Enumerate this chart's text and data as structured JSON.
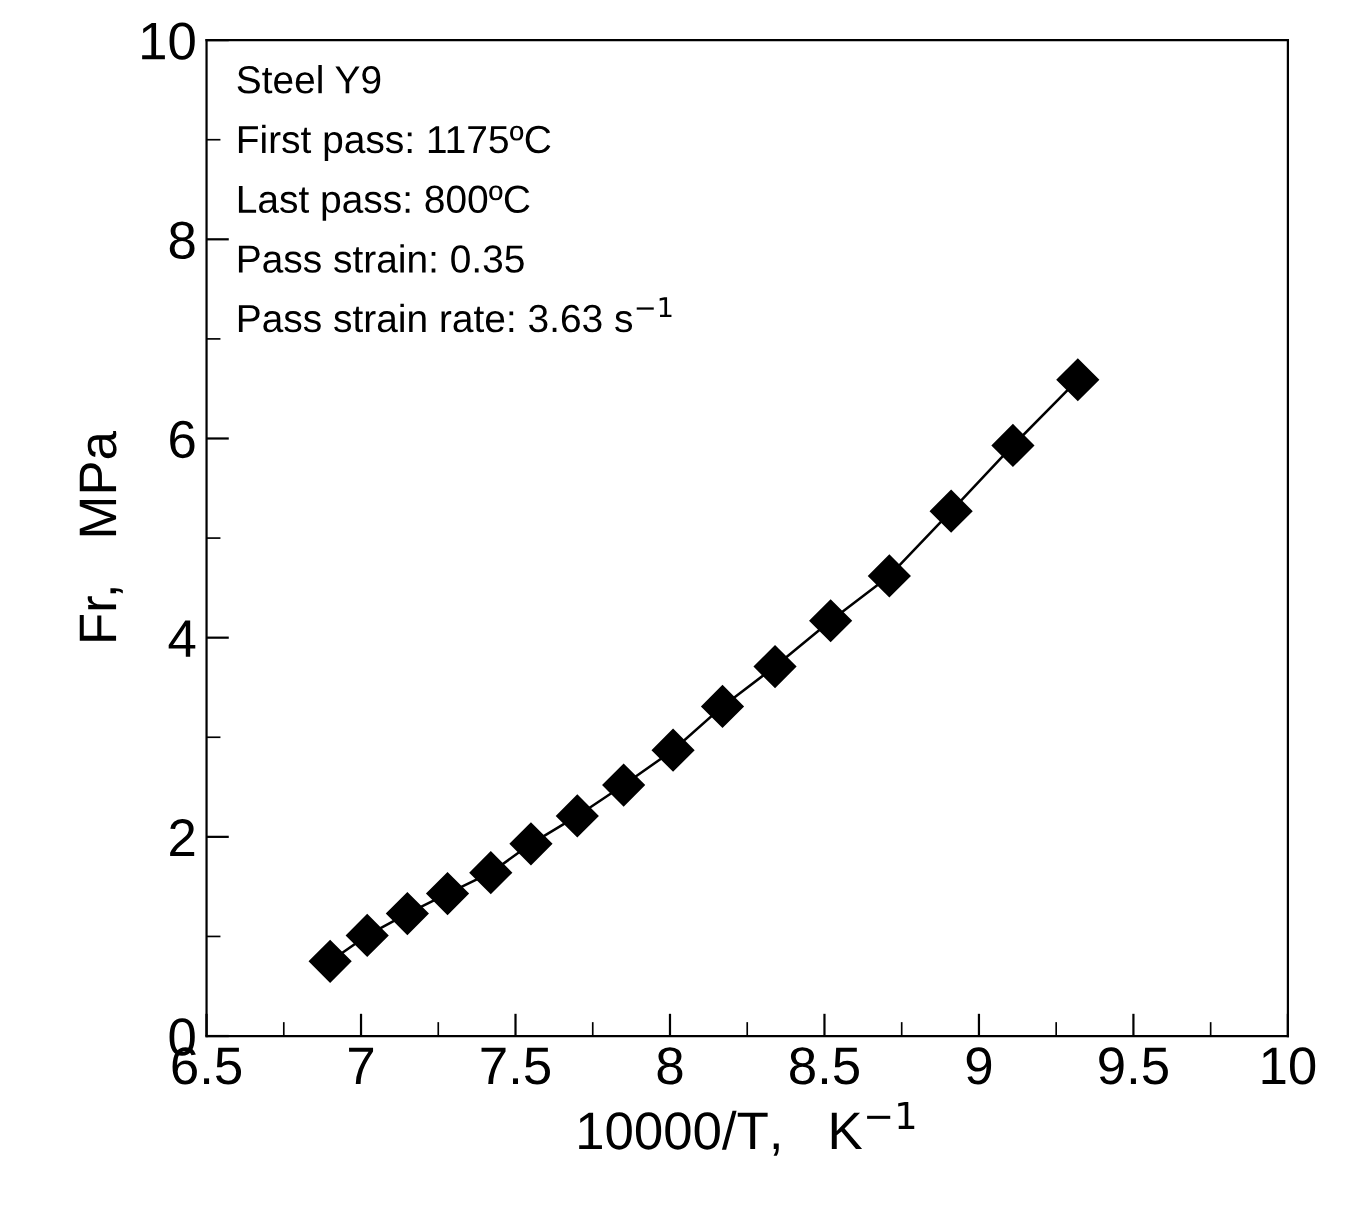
{
  "chart_data": {
    "type": "line",
    "xlabel": "10000/T,   K$^{−1}$",
    "ylabel": "Fr,   MPa",
    "x": [
      6.9,
      7.02,
      7.15,
      7.28,
      7.42,
      7.55,
      7.7,
      7.85,
      8.01,
      8.17,
      8.34,
      8.52,
      8.71,
      8.91,
      9.11,
      9.32
    ],
    "series": [
      {
        "color": "#000000",
        "values": [
          0.75,
          1.01,
          1.23,
          1.43,
          1.64,
          1.93,
          2.21,
          2.52,
          2.87,
          3.31,
          3.71,
          4.17,
          4.62,
          5.27,
          5.93,
          6.59
        ]
      }
    ],
    "xlim": [
      6.5,
      10
    ],
    "xticks": [
      6.5,
      7,
      7.5,
      8,
      8.5,
      9,
      9.5,
      10
    ],
    "ylim": [
      0,
      10
    ],
    "yticks": [
      0,
      2,
      4,
      6,
      8,
      10
    ],
    "marker": "diamond",
    "line_style": "solid",
    "grid": false,
    "legend": false,
    "annotations": [
      "Steel Y9",
      "First pass: 1175ºC",
      "Last pass: 800ºC",
      "Pass strain: 0.35",
      "Pass strain rate: 3.63 s$^{−1}$"
    ]
  }
}
